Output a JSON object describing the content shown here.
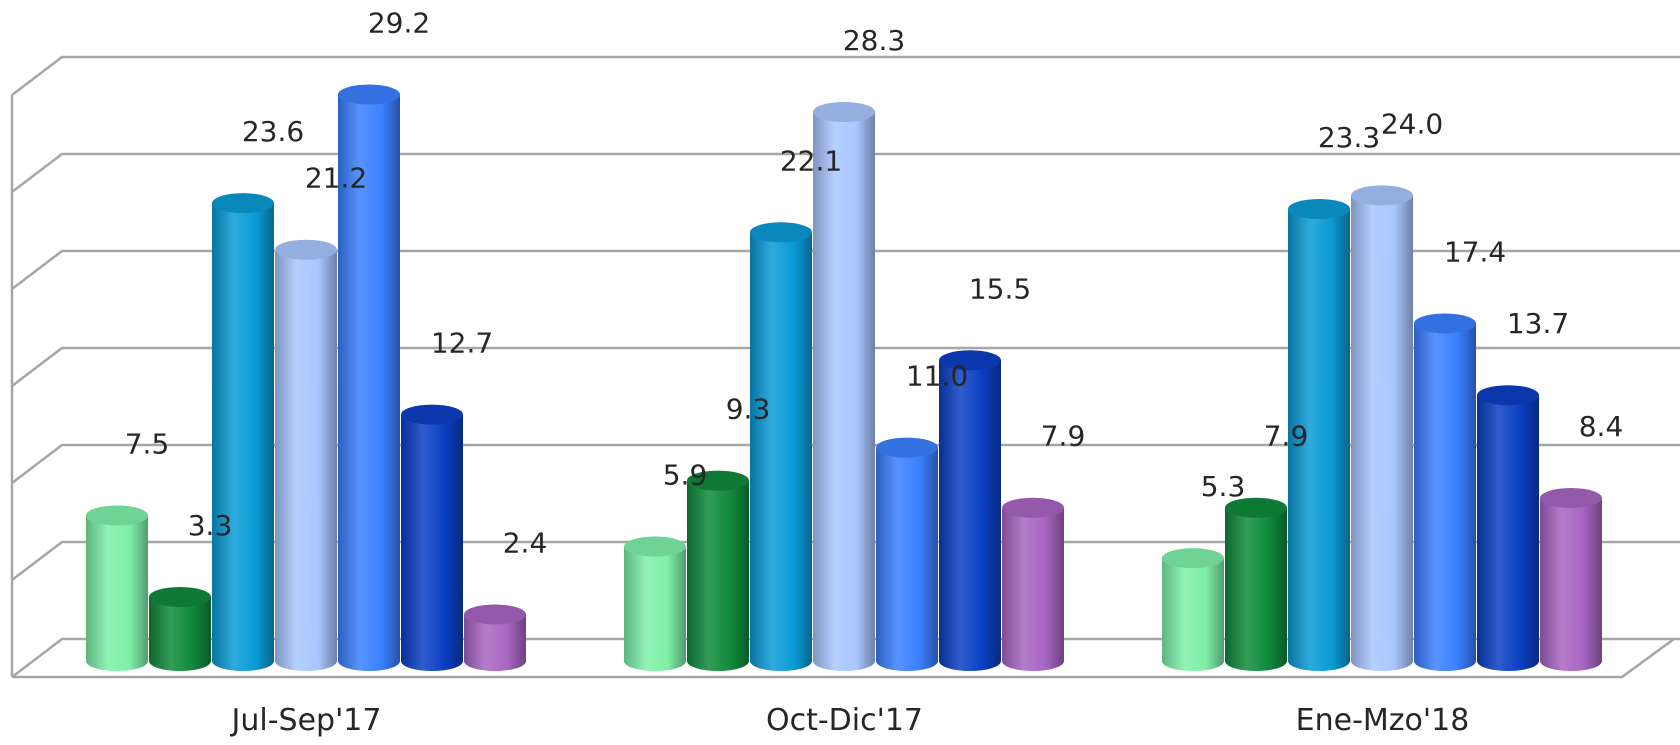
{
  "chart_data": {
    "type": "bar",
    "style": "3d-cylinder",
    "categories": [
      "Jul-Sep'17",
      "Oct-Dic'17",
      "Ene-Mzo'18"
    ],
    "series": [
      {
        "color": "#7ef0a8",
        "values": [
          7.5,
          5.9,
          5.3
        ]
      },
      {
        "color": "#0f8a3c",
        "values": [
          3.3,
          9.3,
          7.9
        ]
      },
      {
        "color": "#0a9bd6",
        "values": [
          23.6,
          22.1,
          23.3
        ]
      },
      {
        "color": "#a9c6ff",
        "values": [
          21.2,
          28.3,
          24.0
        ]
      },
      {
        "color": "#3a80ff",
        "values": [
          29.2,
          11.0,
          17.4
        ]
      },
      {
        "color": "#0b3fc4",
        "values": [
          12.7,
          15.5,
          13.7
        ]
      },
      {
        "color": "#a865c2",
        "values": [
          2.4,
          7.9,
          8.4
        ]
      }
    ],
    "data_labels": [
      [
        "7.5",
        "3.3",
        "23.6",
        "21.2",
        "29.2",
        "12.7",
        "2.4"
      ],
      [
        "5.9",
        "9.3",
        "22.1",
        "28.3",
        "11.0",
        "15.5",
        "7.9"
      ],
      [
        "5.3",
        "7.9",
        "23.3",
        "24.0",
        "17.4",
        "13.7",
        "8.4"
      ]
    ],
    "ylim": [
      0,
      30
    ],
    "grid": true,
    "legend": "none",
    "title": "",
    "xlabel": "",
    "ylabel": ""
  }
}
